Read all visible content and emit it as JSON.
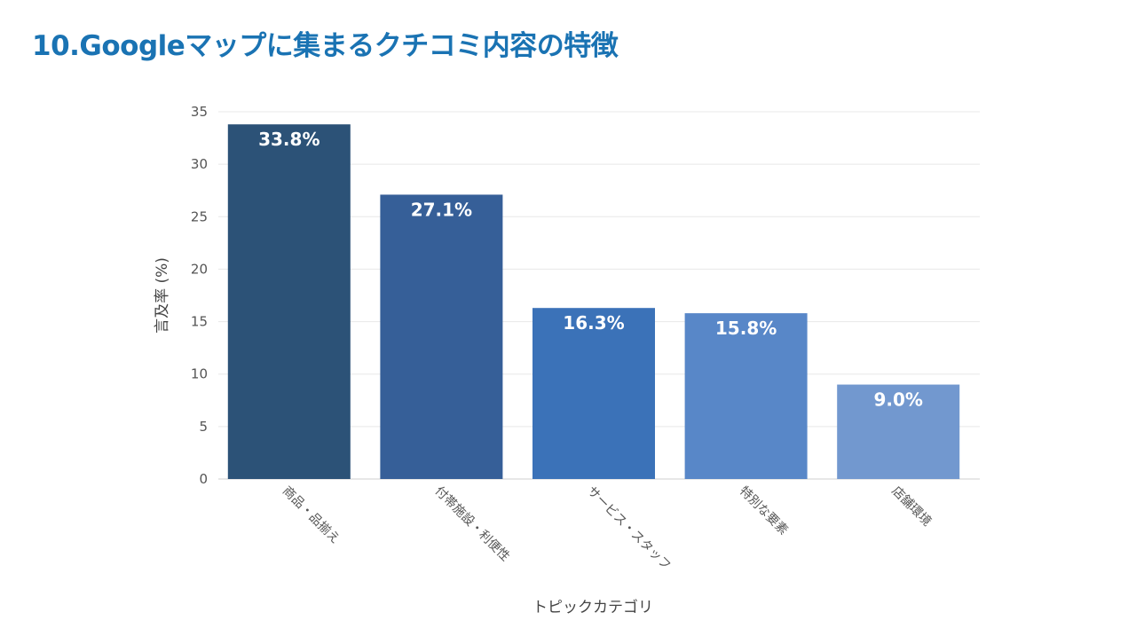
{
  "page": {
    "title": "10.Googleマップに集まるクチコミ内容の特徴"
  },
  "chart_data": {
    "type": "bar",
    "title": "",
    "xlabel": "トピックカテゴリ",
    "ylabel": "言及率 (%)",
    "ylim": [
      0,
      35
    ],
    "yticks": [
      0,
      5,
      10,
      15,
      20,
      25,
      30,
      35
    ],
    "grid": true,
    "categories": [
      "商品・品揃え",
      "付帯施設・利便性",
      "サービス・スタッフ",
      "特別な要素",
      "店舗環境"
    ],
    "values": [
      33.8,
      27.1,
      16.3,
      15.8,
      9.0
    ],
    "data_labels": [
      "33.8%",
      "27.1%",
      "16.3%",
      "15.8%",
      "9.0%"
    ],
    "colors": [
      "#2c5277",
      "#365f98",
      "#3b72b8",
      "#5887c8",
      "#7298cf"
    ]
  }
}
